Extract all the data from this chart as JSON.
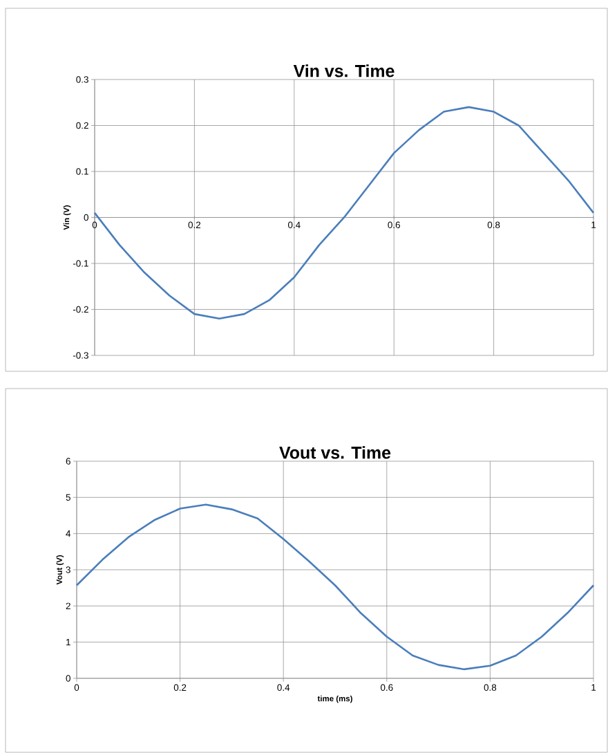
{
  "chart_data": [
    {
      "type": "line",
      "title": "Vin vs. Time",
      "ylabel": "Vin (V)",
      "color": "#4a7ebb",
      "grid": true,
      "x": [
        0,
        0.05,
        0.1,
        0.15,
        0.2,
        0.25,
        0.3,
        0.35,
        0.4,
        0.45,
        0.5,
        0.55,
        0.6,
        0.65,
        0.7,
        0.75,
        0.8,
        0.85,
        0.9,
        0.95,
        1
      ],
      "values": [
        0.01,
        -0.06,
        -0.12,
        -0.17,
        -0.21,
        -0.22,
        -0.21,
        -0.18,
        -0.13,
        -0.06,
        0.0,
        0.07,
        0.14,
        0.19,
        0.23,
        0.24,
        0.23,
        0.2,
        0.14,
        0.08,
        0.01
      ],
      "xlim": [
        0,
        1
      ],
      "ylim": [
        -0.3,
        0.3
      ],
      "xticks": [
        0,
        0.2,
        0.4,
        0.6,
        0.8,
        1
      ],
      "yticks": [
        -0.3,
        -0.2,
        -0.1,
        0,
        0.1,
        0.2,
        0.3
      ]
    },
    {
      "type": "line",
      "title": "Vout vs. Time",
      "xlabel": "time (ms)",
      "ylabel": "Vout (V)",
      "color": "#4a7ebb",
      "grid": true,
      "x": [
        0,
        0.05,
        0.1,
        0.15,
        0.2,
        0.25,
        0.3,
        0.35,
        0.4,
        0.45,
        0.5,
        0.55,
        0.6,
        0.65,
        0.7,
        0.75,
        0.8,
        0.85,
        0.9,
        0.95,
        1
      ],
      "values": [
        2.57,
        3.28,
        3.9,
        4.37,
        4.69,
        4.8,
        4.67,
        4.42,
        3.85,
        3.23,
        2.57,
        1.8,
        1.15,
        0.63,
        0.37,
        0.25,
        0.35,
        0.63,
        1.15,
        1.81,
        2.57
      ],
      "xlim": [
        0,
        1
      ],
      "ylim": [
        0,
        6
      ],
      "xticks": [
        0,
        0.2,
        0.4,
        0.6,
        0.8,
        1
      ],
      "yticks": [
        0,
        1,
        2,
        3,
        4,
        5,
        6
      ]
    }
  ]
}
